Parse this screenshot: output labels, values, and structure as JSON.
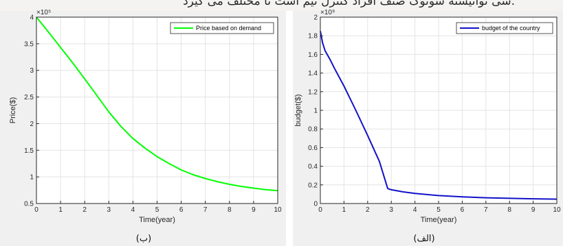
{
  "header_text": "شی توانیسته سونوگ صنف افراد کنترل نیم است تا مختلف می گیرد.",
  "chart_data": [
    {
      "type": "line",
      "caption": "(ب)",
      "xlabel": "Time(year)",
      "ylabel": "Price($)",
      "exponent": "×10⁵",
      "xlim": [
        0,
        10
      ],
      "ylim": [
        0.5,
        4
      ],
      "xticks": [
        0,
        1,
        2,
        3,
        4,
        5,
        6,
        7,
        8,
        9,
        10
      ],
      "yticks": [
        0.5,
        1,
        1.5,
        2,
        2.5,
        3,
        3.5,
        4
      ],
      "ytick_labels": [
        "0.5",
        "1",
        "1.5",
        "2",
        "2.5",
        "3",
        "3.5",
        "4"
      ],
      "grid": true,
      "legend_position": "top-right",
      "series": [
        {
          "name": "Price based on demand",
          "color": "#00ff00",
          "x": [
            0,
            0.5,
            1,
            1.5,
            2,
            2.5,
            3,
            3.5,
            4,
            4.5,
            5,
            5.5,
            6,
            6.5,
            7,
            7.5,
            8,
            8.5,
            9,
            9.5,
            10
          ],
          "y": [
            4.0,
            3.72,
            3.43,
            3.14,
            2.84,
            2.53,
            2.22,
            1.95,
            1.72,
            1.54,
            1.38,
            1.25,
            1.13,
            1.04,
            0.97,
            0.91,
            0.86,
            0.82,
            0.79,
            0.76,
            0.74
          ]
        }
      ]
    },
    {
      "type": "line",
      "caption": "(الف)",
      "xlabel": "Time(year)",
      "ylabel": "budget($)",
      "exponent": "×10⁹",
      "xlim": [
        0,
        10
      ],
      "ylim": [
        0,
        2
      ],
      "xticks": [
        0,
        1,
        2,
        3,
        4,
        5,
        6,
        7,
        8,
        9,
        10
      ],
      "yticks": [
        0,
        0.2,
        0.4,
        0.6,
        0.8,
        1,
        1.2,
        1.4,
        1.6,
        1.8,
        2
      ],
      "ytick_labels": [
        "0",
        "0.2",
        "0.4",
        "0.6",
        "0.8",
        "1",
        "1.2",
        "1.4",
        "1.6",
        "1.8",
        "2"
      ],
      "grid": true,
      "legend_position": "top-right",
      "series": [
        {
          "name": "budget of the country",
          "color": "#1010c8",
          "x": [
            0,
            0.1,
            0.2,
            0.4,
            0.6,
            1,
            1.5,
            2,
            2.5,
            2.85,
            3,
            3.5,
            4,
            5,
            6,
            7,
            8,
            9,
            10
          ],
          "y": [
            1.85,
            1.72,
            1.64,
            1.55,
            1.45,
            1.26,
            1.0,
            0.73,
            0.45,
            0.16,
            0.148,
            0.125,
            0.108,
            0.085,
            0.072,
            0.062,
            0.056,
            0.051,
            0.047
          ]
        }
      ]
    }
  ]
}
